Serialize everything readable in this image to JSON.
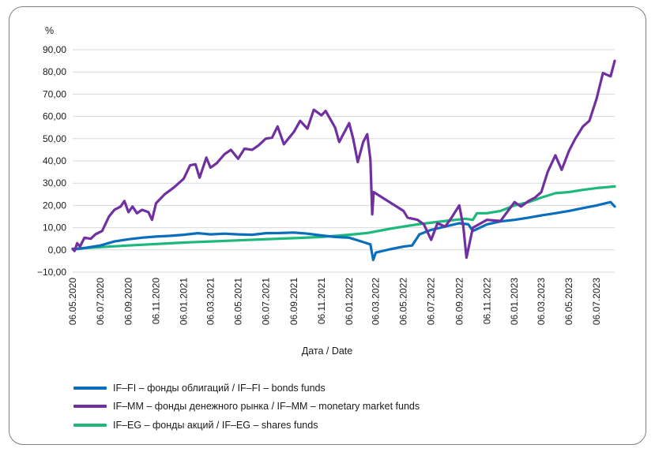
{
  "chart_data": {
    "type": "line",
    "y_unit": "%",
    "xlabel": "Дата / Date",
    "ylim": [
      -10,
      90
    ],
    "y_ticks": [
      "90,00",
      "80,00",
      "70,00",
      "60,00",
      "50,00",
      "40,00",
      "30,00",
      "20,00",
      "10,00",
      "0,00",
      "−10,00"
    ],
    "x_ticks": [
      "06.05.2020",
      "06.07.2020",
      "06.09.2020",
      "06.11.2020",
      "06.01.2021",
      "06.03.2021",
      "06.05.2021",
      "06.07.2021",
      "06.09.2021",
      "06.11.2021",
      "06.01.2022",
      "06.03.2022",
      "06.05.2022",
      "06.07.2022",
      "06.09.2022",
      "06.11.2022",
      "06.01.2023",
      "06.03.2023",
      "06.05.2023",
      "06.07.2023"
    ],
    "x_range": [
      "2020-05-06",
      "2023-08-15"
    ],
    "grid": "horizontal",
    "legend_position": "bottom",
    "series": [
      {
        "name": "IF–FI – фонды облигаций / IF–FI – bonds funds",
        "color": "#0A6EBD",
        "points": [
          [
            "2020-05-06",
            0.3
          ],
          [
            "2020-05-20",
            0.5
          ],
          [
            "2020-06-06",
            1.0
          ],
          [
            "2020-07-06",
            2.0
          ],
          [
            "2020-08-06",
            3.8
          ],
          [
            "2020-09-06",
            4.8
          ],
          [
            "2020-10-06",
            5.5
          ],
          [
            "2020-11-06",
            6.0
          ],
          [
            "2020-12-06",
            6.3
          ],
          [
            "2021-01-06",
            6.8
          ],
          [
            "2021-02-06",
            7.5
          ],
          [
            "2021-03-06",
            7.0
          ],
          [
            "2021-04-06",
            7.3
          ],
          [
            "2021-05-06",
            7.0
          ],
          [
            "2021-06-06",
            6.8
          ],
          [
            "2021-07-06",
            7.5
          ],
          [
            "2021-08-06",
            7.6
          ],
          [
            "2021-09-06",
            7.8
          ],
          [
            "2021-10-06",
            7.3
          ],
          [
            "2021-11-06",
            6.5
          ],
          [
            "2021-12-06",
            5.8
          ],
          [
            "2022-01-06",
            5.5
          ],
          [
            "2022-02-06",
            3.5
          ],
          [
            "2022-02-22",
            2.5
          ],
          [
            "2022-02-28",
            -4.5
          ],
          [
            "2022-03-06",
            -1.2
          ],
          [
            "2022-04-06",
            0.3
          ],
          [
            "2022-05-06",
            1.5
          ],
          [
            "2022-05-25",
            2.0
          ],
          [
            "2022-06-10",
            7.0
          ],
          [
            "2022-07-06",
            9.0
          ],
          [
            "2022-08-06",
            10.5
          ],
          [
            "2022-09-06",
            12.0
          ],
          [
            "2022-09-26",
            11.5
          ],
          [
            "2022-10-06",
            8.5
          ],
          [
            "2022-11-06",
            11.5
          ],
          [
            "2022-12-06",
            12.8
          ],
          [
            "2023-01-06",
            13.5
          ],
          [
            "2023-02-06",
            14.5
          ],
          [
            "2023-03-06",
            15.5
          ],
          [
            "2023-04-06",
            16.5
          ],
          [
            "2023-05-06",
            17.5
          ],
          [
            "2023-06-06",
            18.8
          ],
          [
            "2023-07-06",
            20.0
          ],
          [
            "2023-08-06",
            21.5
          ],
          [
            "2023-08-15",
            19.5
          ]
        ]
      },
      {
        "name": "IF–MM – фонды денежного рынка / IF–MM – monetary market funds",
        "color": "#7030A0",
        "points": [
          [
            "2020-05-06",
            0.5
          ],
          [
            "2020-05-10",
            -0.5
          ],
          [
            "2020-05-16",
            3.0
          ],
          [
            "2020-05-22",
            1.5
          ],
          [
            "2020-06-01",
            5.5
          ],
          [
            "2020-06-15",
            5.0
          ],
          [
            "2020-06-25",
            7.0
          ],
          [
            "2020-07-10",
            8.5
          ],
          [
            "2020-07-25",
            15.0
          ],
          [
            "2020-08-06",
            18.0
          ],
          [
            "2020-08-20",
            19.5
          ],
          [
            "2020-08-28",
            22.0
          ],
          [
            "2020-09-06",
            17.0
          ],
          [
            "2020-09-15",
            19.5
          ],
          [
            "2020-09-25",
            16.5
          ],
          [
            "2020-10-06",
            18.0
          ],
          [
            "2020-10-20",
            17.0
          ],
          [
            "2020-10-28",
            13.5
          ],
          [
            "2020-11-06",
            21.0
          ],
          [
            "2020-11-25",
            25.0
          ],
          [
            "2020-12-15",
            28.0
          ],
          [
            "2021-01-06",
            32.0
          ],
          [
            "2021-01-20",
            38.0
          ],
          [
            "2021-02-01",
            38.5
          ],
          [
            "2021-02-10",
            32.5
          ],
          [
            "2021-02-25",
            41.5
          ],
          [
            "2021-03-06",
            37.0
          ],
          [
            "2021-03-20",
            39.0
          ],
          [
            "2021-04-06",
            43.0
          ],
          [
            "2021-04-20",
            45.0
          ],
          [
            "2021-05-06",
            41.0
          ],
          [
            "2021-05-20",
            45.5
          ],
          [
            "2021-06-06",
            45.0
          ],
          [
            "2021-06-20",
            47.0
          ],
          [
            "2021-07-06",
            50.0
          ],
          [
            "2021-07-20",
            50.5
          ],
          [
            "2021-08-01",
            55.5
          ],
          [
            "2021-08-15",
            47.5
          ],
          [
            "2021-09-06",
            53.0
          ],
          [
            "2021-09-20",
            58.0
          ],
          [
            "2021-10-06",
            54.5
          ],
          [
            "2021-10-20",
            63.0
          ],
          [
            "2021-11-06",
            60.5
          ],
          [
            "2021-11-15",
            62.5
          ],
          [
            "2021-12-06",
            55.0
          ],
          [
            "2021-12-15",
            48.5
          ],
          [
            "2022-01-06",
            57.0
          ],
          [
            "2022-01-15",
            50.0
          ],
          [
            "2022-01-25",
            39.5
          ],
          [
            "2022-02-06",
            48.5
          ],
          [
            "2022-02-15",
            52.0
          ],
          [
            "2022-02-22",
            40.5
          ],
          [
            "2022-02-26",
            16.0
          ],
          [
            "2022-03-01",
            26.0
          ],
          [
            "2022-05-06",
            17.5
          ],
          [
            "2022-05-15",
            14.5
          ],
          [
            "2022-06-06",
            13.5
          ],
          [
            "2022-06-20",
            11.5
          ],
          [
            "2022-07-06",
            4.5
          ],
          [
            "2022-07-20",
            12.0
          ],
          [
            "2022-08-06",
            10.5
          ],
          [
            "2022-08-20",
            14.5
          ],
          [
            "2022-09-06",
            20.0
          ],
          [
            "2022-09-15",
            10.5
          ],
          [
            "2022-09-22",
            -3.5
          ],
          [
            "2022-10-06",
            10.0
          ],
          [
            "2022-11-06",
            13.5
          ],
          [
            "2022-12-06",
            13.0
          ],
          [
            "2023-01-06",
            21.5
          ],
          [
            "2023-01-20",
            19.5
          ],
          [
            "2023-02-06",
            22.0
          ],
          [
            "2023-02-20",
            23.5
          ],
          [
            "2023-03-06",
            26.0
          ],
          [
            "2023-03-20",
            35.0
          ],
          [
            "2023-04-06",
            42.5
          ],
          [
            "2023-04-20",
            36.0
          ],
          [
            "2023-05-06",
            44.5
          ],
          [
            "2023-05-20",
            50.0
          ],
          [
            "2023-06-06",
            55.5
          ],
          [
            "2023-06-20",
            58.0
          ],
          [
            "2023-07-06",
            68.0
          ],
          [
            "2023-07-20",
            79.5
          ],
          [
            "2023-08-06",
            78.0
          ],
          [
            "2023-08-15",
            85.0
          ]
        ]
      },
      {
        "name": "IF–EG – фонды акций / IF–EG – shares funds",
        "color": "#1DB97C",
        "points": [
          [
            "2020-05-06",
            0.5
          ],
          [
            "2020-09-06",
            2.0
          ],
          [
            "2021-01-06",
            3.3
          ],
          [
            "2021-05-06",
            4.3
          ],
          [
            "2021-09-06",
            5.3
          ],
          [
            "2021-11-06",
            5.8
          ],
          [
            "2022-01-06",
            6.8
          ],
          [
            "2022-02-15",
            7.6
          ],
          [
            "2022-04-06",
            9.5
          ],
          [
            "2022-06-06",
            11.5
          ],
          [
            "2022-08-06",
            13.0
          ],
          [
            "2022-09-20",
            14.0
          ],
          [
            "2022-10-06",
            13.5
          ],
          [
            "2022-10-15",
            16.5
          ],
          [
            "2022-11-06",
            16.5
          ],
          [
            "2022-12-06",
            17.5
          ],
          [
            "2023-01-06",
            20.0
          ],
          [
            "2023-02-06",
            21.5
          ],
          [
            "2023-03-06",
            23.5
          ],
          [
            "2023-04-06",
            25.5
          ],
          [
            "2023-05-06",
            26.0
          ],
          [
            "2023-06-06",
            27.0
          ],
          [
            "2023-07-06",
            27.8
          ],
          [
            "2023-08-15",
            28.5
          ]
        ]
      }
    ]
  }
}
